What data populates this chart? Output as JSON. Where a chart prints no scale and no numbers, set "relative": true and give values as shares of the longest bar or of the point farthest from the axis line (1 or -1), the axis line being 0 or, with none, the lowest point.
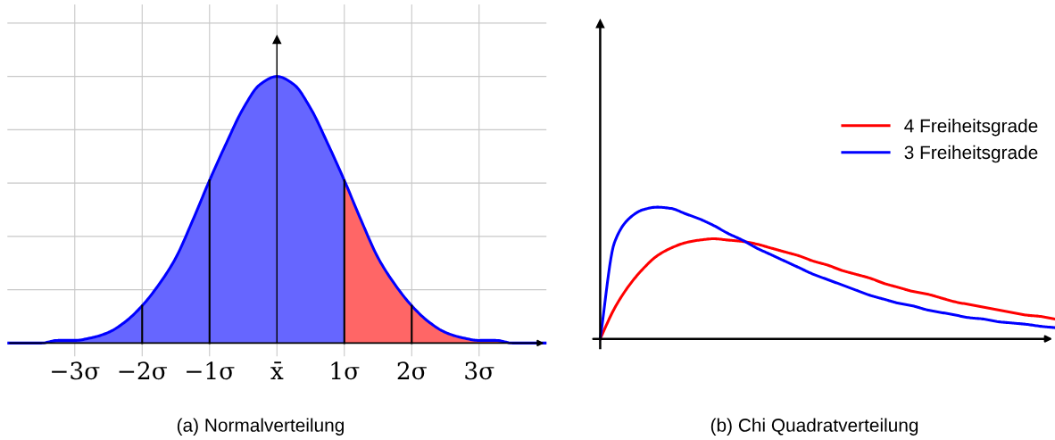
{
  "chart_data": [
    {
      "type": "area",
      "title": "(a) Normalverteilung",
      "relative": true,
      "xlim": [
        -4,
        4
      ],
      "xticks": [
        {
          "value": -3,
          "label": "−3σ"
        },
        {
          "value": -2,
          "label": "−2σ"
        },
        {
          "value": -1,
          "label": "−1σ"
        },
        {
          "value": 0,
          "label": "x̄"
        },
        {
          "value": 1,
          "label": "1σ"
        },
        {
          "value": 2,
          "label": "2σ"
        },
        {
          "value": 3,
          "label": "3σ"
        }
      ],
      "grid": true,
      "tick_labels": "x",
      "legend": false,
      "series": [
        {
          "type": "area",
          "color": "#6666ff",
          "x": [
            -4,
            -3.75,
            -3.5,
            -3.25,
            -3,
            -2.75,
            -2.5,
            -2.25,
            -2,
            -1.75,
            -1.5,
            -1.25,
            -1,
            -0.75,
            -0.5,
            -0.25,
            0,
            0.25,
            0.5,
            0.75,
            1
          ],
          "values": [
            0,
            0,
            0,
            0.01,
            0.01,
            0.02,
            0.04,
            0.08,
            0.14,
            0.22,
            0.32,
            0.46,
            0.61,
            0.75,
            0.88,
            0.97,
            1,
            0.97,
            0.88,
            0.75,
            0.61
          ]
        },
        {
          "type": "area",
          "color": "#ff6666",
          "x": [
            1,
            1.25,
            1.5,
            1.75,
            2,
            2.25,
            2.5,
            2.75,
            3,
            3.25,
            3.5,
            3.75,
            4
          ],
          "values": [
            0.61,
            0.46,
            0.32,
            0.22,
            0.14,
            0.08,
            0.04,
            0.02,
            0.01,
            0.01,
            0,
            0,
            0
          ]
        },
        {
          "type": "line",
          "color": "#0000ff",
          "x": [
            -4,
            -3.75,
            -3.5,
            -3.25,
            -3,
            -2.75,
            -2.5,
            -2.25,
            -2,
            -1.75,
            -1.5,
            -1.25,
            -1,
            -0.75,
            -0.5,
            -0.25,
            0,
            0.25,
            0.5,
            0.75,
            1,
            1.25,
            1.5,
            1.75,
            2,
            2.25,
            2.5,
            2.75,
            3,
            3.25,
            3.5,
            3.75,
            4
          ],
          "values": [
            0,
            0,
            0,
            0.01,
            0.01,
            0.02,
            0.04,
            0.08,
            0.14,
            0.22,
            0.32,
            0.46,
            0.61,
            0.75,
            0.88,
            0.97,
            1,
            0.97,
            0.88,
            0.75,
            0.61,
            0.46,
            0.32,
            0.22,
            0.14,
            0.08,
            0.04,
            0.02,
            0.01,
            0.01,
            0,
            0,
            0
          ]
        }
      ],
      "ref_lines": [
        {
          "axis": "x",
          "value": -2,
          "color": "#000000"
        },
        {
          "axis": "x",
          "value": -1,
          "color": "#000000"
        },
        {
          "axis": "x",
          "value": 1,
          "color": "#000000"
        },
        {
          "axis": "x",
          "value": 2,
          "color": "#000000"
        }
      ]
    },
    {
      "type": "line",
      "title": "(b) Chi Quadratverteilung",
      "relative": true,
      "tick_labels": false,
      "legend": "right",
      "categories": [
        null,
        null,
        null,
        null,
        null,
        null,
        null,
        null,
        null,
        null,
        null,
        null,
        null,
        null,
        null,
        null,
        null,
        null,
        null,
        null,
        null,
        null,
        null,
        null,
        null,
        null,
        null,
        null,
        null,
        null,
        null,
        null,
        null
      ],
      "series": [
        {
          "name": "4 Freiheitsgrade",
          "color": "#ff0000",
          "values": [
            0,
            0.23,
            0.4,
            0.53,
            0.63,
            0.69,
            0.73,
            0.75,
            0.76,
            0.75,
            0.74,
            0.72,
            0.69,
            0.66,
            0.63,
            0.59,
            0.56,
            0.52,
            0.49,
            0.46,
            0.42,
            0.39,
            0.36,
            0.34,
            0.31,
            0.28,
            0.26,
            0.24,
            0.22,
            0.2,
            0.18,
            0.17,
            0.15
          ]
        },
        {
          "name": "3 Freiheitsgrade",
          "color": "#0000ff",
          "values": [
            0,
            0.73,
            0.91,
            0.98,
            1,
            0.99,
            0.95,
            0.91,
            0.86,
            0.8,
            0.75,
            0.69,
            0.64,
            0.59,
            0.54,
            0.49,
            0.45,
            0.41,
            0.37,
            0.33,
            0.3,
            0.27,
            0.25,
            0.22,
            0.2,
            0.18,
            0.16,
            0.15,
            0.13,
            0.12,
            0.11,
            0.095,
            0.085
          ]
        }
      ]
    }
  ]
}
